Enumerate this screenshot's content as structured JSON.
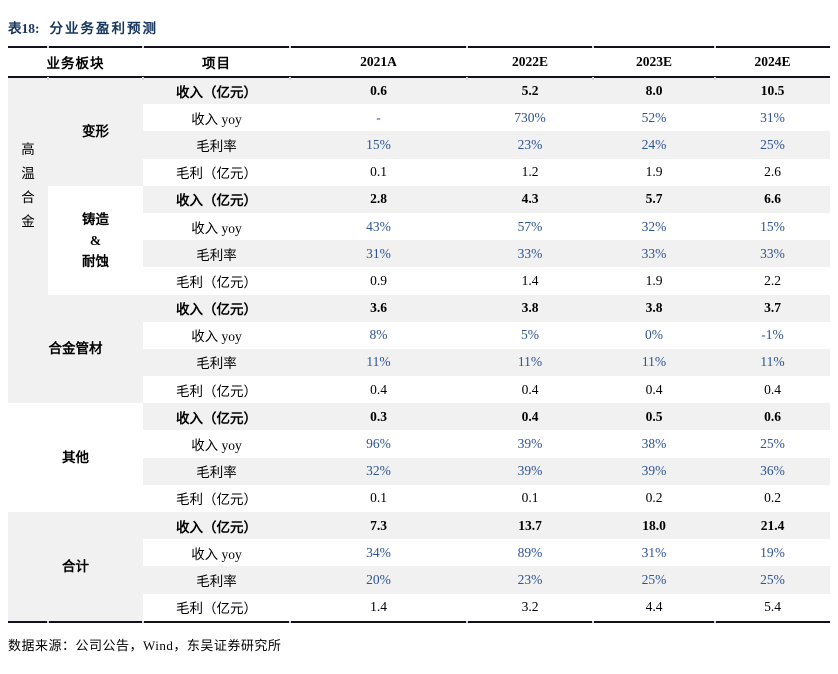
{
  "title": {
    "label": "表18:",
    "text": "分业务盈利预测"
  },
  "source": "数据来源：公司公告，Wind，东吴证券研究所",
  "colors": {
    "title_navy": "#17365d",
    "value_blue": "#2e5493",
    "row_shade": "#f1f1f1",
    "rule_black": "#12121c"
  },
  "table": {
    "headers": {
      "segment": "业务板块",
      "item": "项目",
      "years": [
        "2021A",
        "2022E",
        "2023E",
        "2024E"
      ]
    },
    "groups": [
      {
        "parent": "高温合金",
        "segment": "变形",
        "rows": [
          {
            "label": "收入（亿元）",
            "values": [
              "0.6",
              "5.2",
              "8.0",
              "10.5"
            ]
          },
          {
            "label": "收入 yoy",
            "values": [
              "-",
              "730%",
              "52%",
              "31%"
            ]
          },
          {
            "label": "毛利率",
            "values": [
              "15%",
              "23%",
              "24%",
              "25%"
            ]
          },
          {
            "label": "毛利（亿元）",
            "values": [
              "0.1",
              "1.2",
              "1.9",
              "2.6"
            ]
          }
        ]
      },
      {
        "segment": "铸造\n&\n耐蚀",
        "rows": [
          {
            "label": "收入（亿元）",
            "values": [
              "2.8",
              "4.3",
              "5.7",
              "6.6"
            ]
          },
          {
            "label": "收入 yoy",
            "values": [
              "43%",
              "57%",
              "32%",
              "15%"
            ]
          },
          {
            "label": "毛利率",
            "values": [
              "31%",
              "33%",
              "33%",
              "33%"
            ]
          },
          {
            "label": "毛利（亿元）",
            "values": [
              "0.9",
              "1.4",
              "1.9",
              "2.2"
            ]
          }
        ]
      },
      {
        "segment": "合金管材",
        "rows": [
          {
            "label": "收入（亿元）",
            "values": [
              "3.6",
              "3.8",
              "3.8",
              "3.7"
            ]
          },
          {
            "label": "收入 yoy",
            "values": [
              "8%",
              "5%",
              "0%",
              "-1%"
            ]
          },
          {
            "label": "毛利率",
            "values": [
              "11%",
              "11%",
              "11%",
              "11%"
            ]
          },
          {
            "label": "毛利（亿元）",
            "values": [
              "0.4",
              "0.4",
              "0.4",
              "0.4"
            ]
          }
        ]
      },
      {
        "segment": "其他",
        "rows": [
          {
            "label": "收入（亿元）",
            "values": [
              "0.3",
              "0.4",
              "0.5",
              "0.6"
            ]
          },
          {
            "label": "收入 yoy",
            "values": [
              "96%",
              "39%",
              "38%",
              "25%"
            ]
          },
          {
            "label": "毛利率",
            "values": [
              "32%",
              "39%",
              "39%",
              "36%"
            ]
          },
          {
            "label": "毛利（亿元）",
            "values": [
              "0.1",
              "0.1",
              "0.2",
              "0.2"
            ]
          }
        ]
      },
      {
        "segment": "合计",
        "rows": [
          {
            "label": "收入（亿元）",
            "values": [
              "7.3",
              "13.7",
              "18.0",
              "21.4"
            ]
          },
          {
            "label": "收入 yoy",
            "values": [
              "34%",
              "89%",
              "31%",
              "19%"
            ]
          },
          {
            "label": "毛利率",
            "values": [
              "20%",
              "23%",
              "25%",
              "25%"
            ]
          },
          {
            "label": "毛利（亿元）",
            "values": [
              "1.4",
              "3.2",
              "4.4",
              "5.4"
            ]
          }
        ]
      }
    ]
  }
}
